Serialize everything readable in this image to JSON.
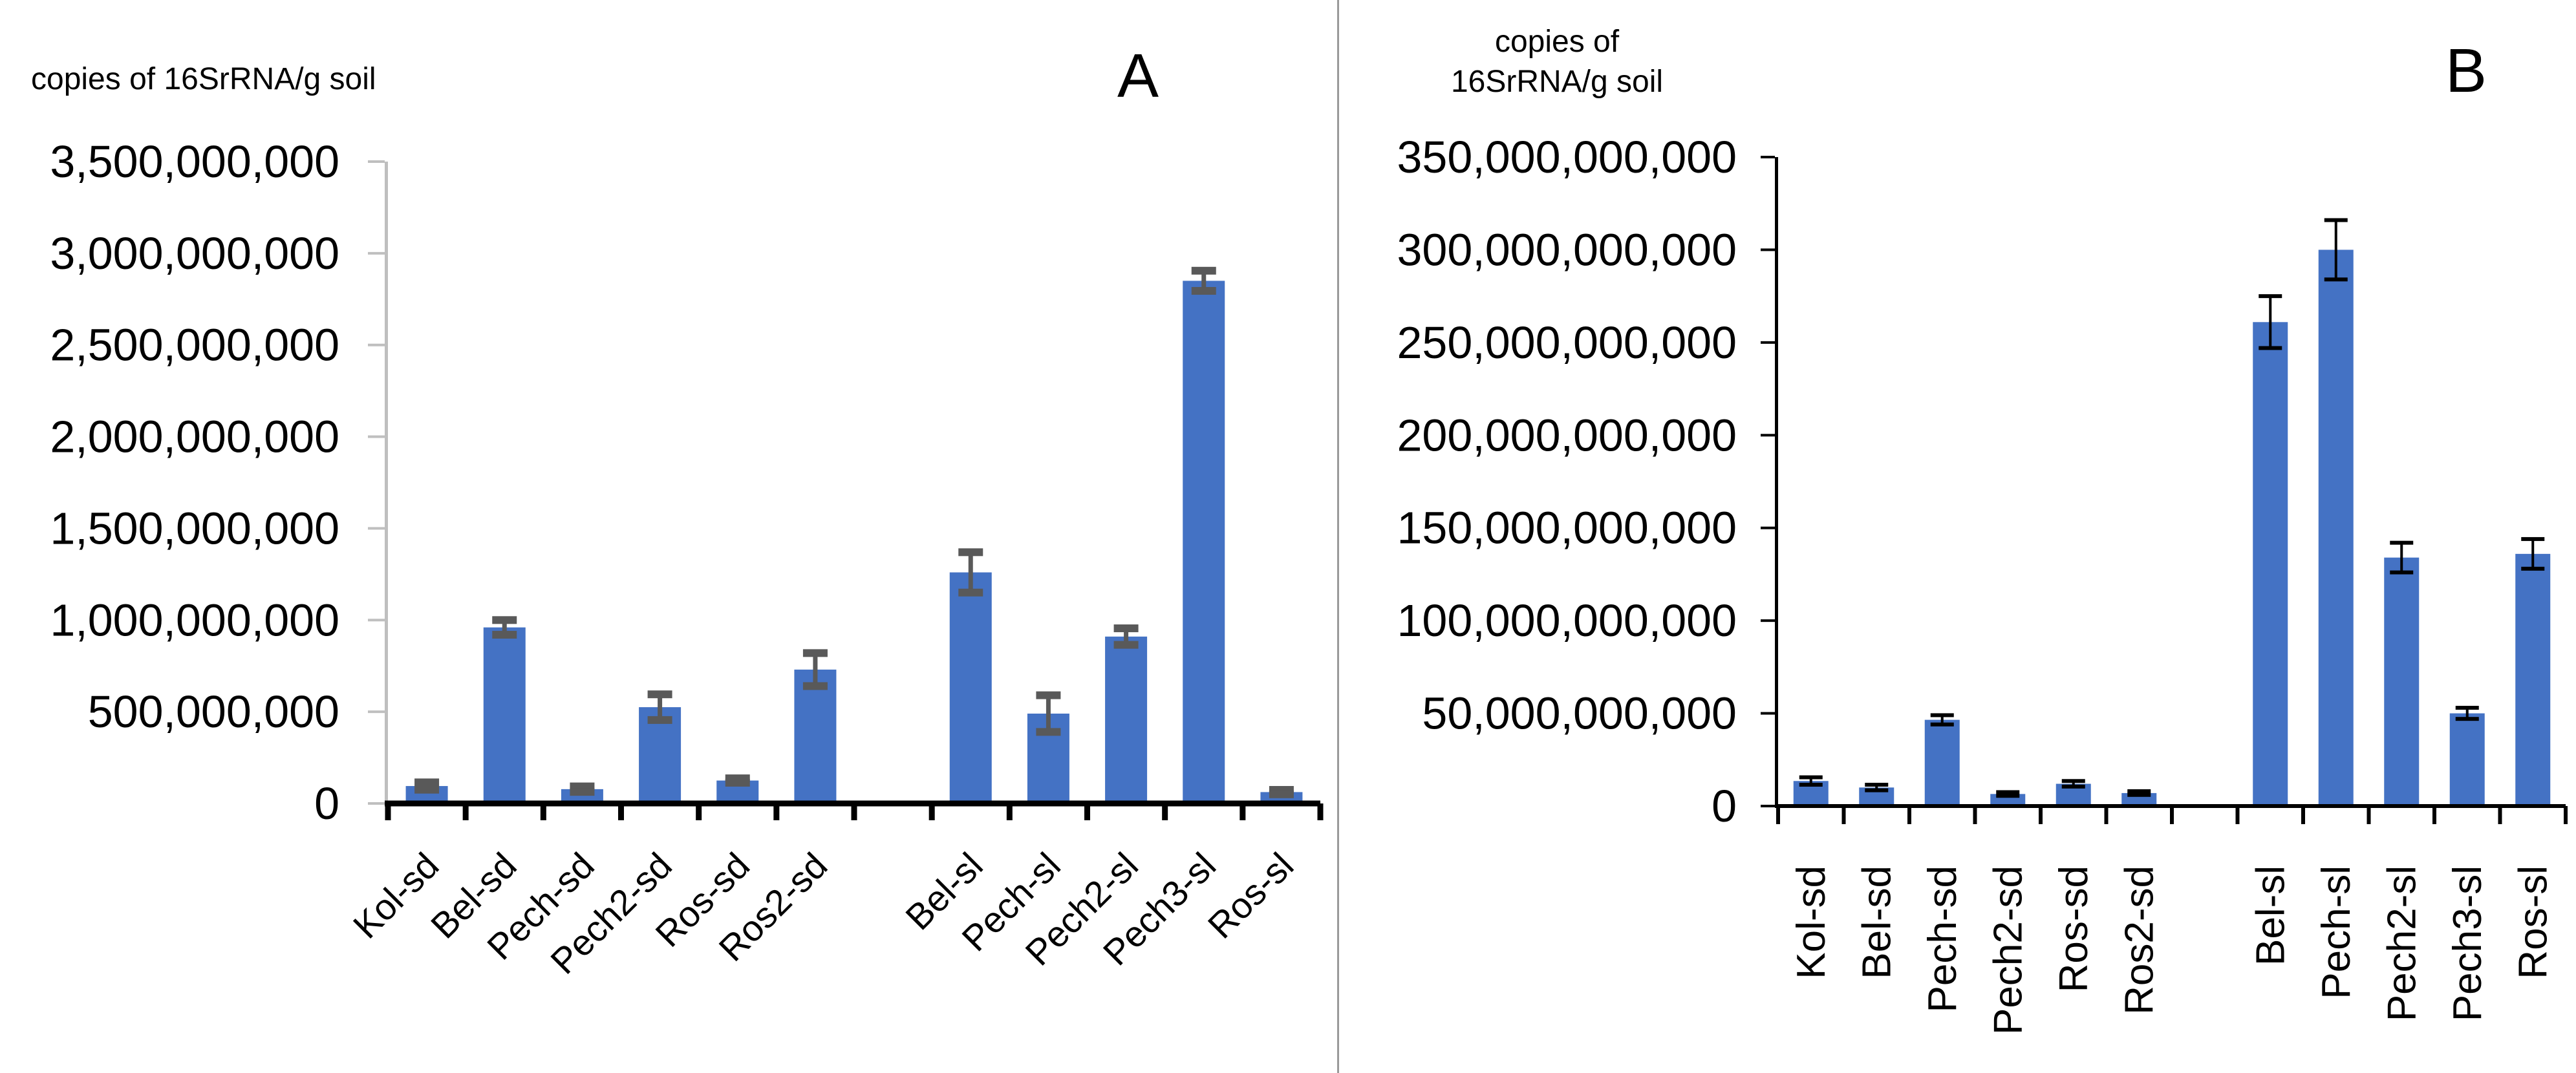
{
  "page": {
    "background": "#ffffff",
    "divider_color": "#9a9a9a"
  },
  "panels": [
    {
      "label": "A",
      "title_lines": [
        "copies of 16SrRNA/g soil"
      ]
    },
    {
      "label": "B",
      "title_lines": [
        "copies of",
        "16SrRNA/g soil"
      ]
    }
  ],
  "chart_data": [
    {
      "type": "bar",
      "panel": "A",
      "title": "copies of 16SrRNA/g soil",
      "xlabel": "",
      "ylabel": "copies of 16SrRNA/g soil",
      "ylim": [
        0,
        3500000000
      ],
      "y_step": 500000000,
      "y_tick_labels": [
        "0",
        "500,000,000",
        "1,000,000,000",
        "1,500,000,000",
        "2,000,000,000",
        "2,500,000,000",
        "3,000,000,000",
        "3,500,000,000"
      ],
      "grid": false,
      "legend": null,
      "categories": [
        "Kol-sd",
        "Bel-sd",
        "Pech-sd",
        "Pech2-sd",
        "Ros-sd",
        "Ros2-sd",
        "",
        "Bel-sl",
        "Pech-sl",
        "Pech2-sl",
        "Pech3-sl",
        "Ros-sl"
      ],
      "values": [
        95000000,
        960000000,
        78000000,
        525000000,
        125000000,
        730000000,
        null,
        1260000000,
        490000000,
        910000000,
        2850000000,
        62000000
      ],
      "errors": [
        20000000,
        40000000,
        15000000,
        70000000,
        12000000,
        90000000,
        null,
        110000000,
        100000000,
        45000000,
        55000000,
        12000000
      ],
      "bar_color": "#4472C4",
      "error_color": "#595959",
      "axis_color": "#BFBFBF",
      "baseline_color": "#000000"
    },
    {
      "type": "bar",
      "panel": "B",
      "title": "copies of 16SrRNA/g soil",
      "xlabel": "",
      "ylabel": "copies of 16SrRNA/g soil",
      "ylim": [
        0,
        350000000000
      ],
      "y_step": 50000000000,
      "y_tick_labels": [
        "0",
        "50,000,000,000",
        "100,000,000,000",
        "150,000,000,000",
        "200,000,000,000",
        "250,000,000,000",
        "300,000,000,000",
        "350,000,000,000"
      ],
      "grid": false,
      "legend": null,
      "categories": [
        "Kol-sd",
        "Bel-sd",
        "Pech-sd",
        "Pech2-sd",
        "Ros-sd",
        "Ros2-sd",
        "",
        "Bel-sl",
        "Pech-sl",
        "Pech2-sl",
        "Pech3-sl",
        "Ros-sl"
      ],
      "values": [
        13500000000,
        10000000000,
        46500000000,
        6500000000,
        12000000000,
        7000000000,
        null,
        261000000000,
        300000000000,
        134000000000,
        50000000000,
        136000000000
      ],
      "errors": [
        2000000000,
        1500000000,
        2500000000,
        1000000000,
        1500000000,
        1000000000,
        null,
        14000000000,
        16000000000,
        8000000000,
        3000000000,
        8000000000
      ],
      "bar_color": "#4472C4",
      "error_color": "#000000",
      "axis_color": "#000000",
      "baseline_color": "#000000"
    }
  ]
}
